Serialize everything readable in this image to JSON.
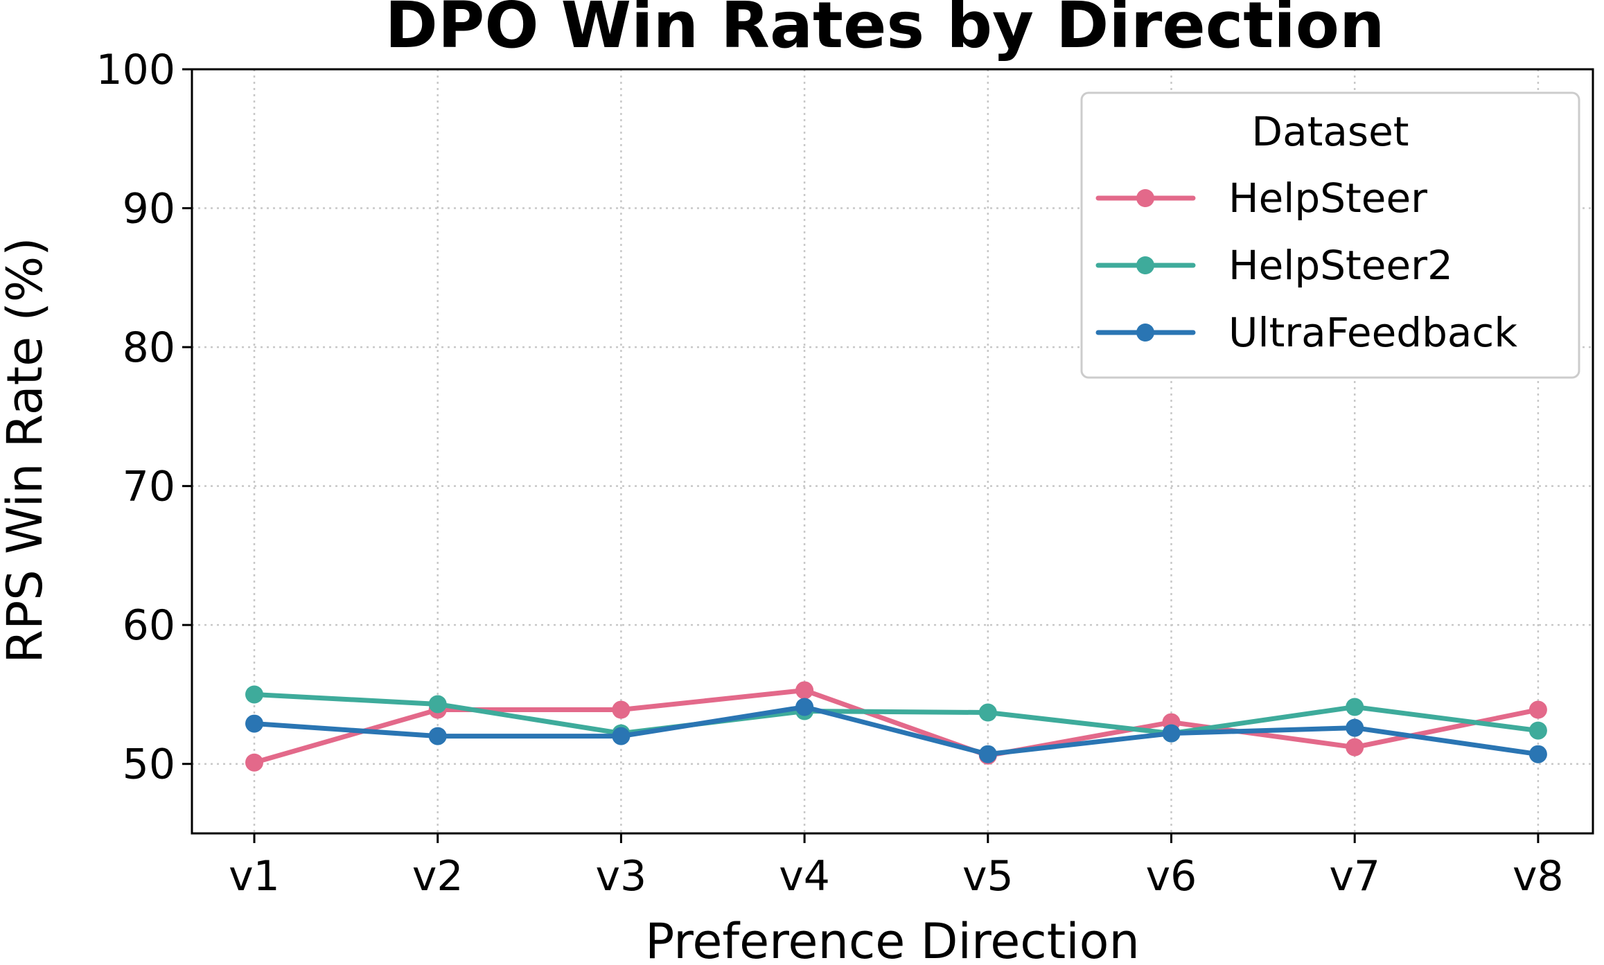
{
  "chart_data": {
    "type": "line",
    "title": "DPO Win Rates by Direction",
    "xlabel": "Preference Direction",
    "ylabel": "RPS Win Rate (%)",
    "categories": [
      "v1",
      "v2",
      "v3",
      "v4",
      "v5",
      "v6",
      "v7",
      "v8"
    ],
    "ylim": [
      45,
      100
    ],
    "yticks": [
      50,
      60,
      70,
      80,
      90,
      100
    ],
    "grid": true,
    "legend": {
      "title": "Dataset",
      "placement": "top-right"
    },
    "series": [
      {
        "name": "HelpSteer",
        "color": "#e3698a",
        "values": [
          50.1,
          53.9,
          53.9,
          55.3,
          50.6,
          53.0,
          51.2,
          53.9
        ]
      },
      {
        "name": "HelpSteer2",
        "color": "#3eab9b",
        "values": [
          55.0,
          54.3,
          52.2,
          53.8,
          53.7,
          52.2,
          54.1,
          52.4
        ]
      },
      {
        "name": "UltraFeedback",
        "color": "#2a75b3",
        "values": [
          52.9,
          52.0,
          52.0,
          54.1,
          50.7,
          52.2,
          52.6,
          50.7
        ]
      }
    ]
  }
}
